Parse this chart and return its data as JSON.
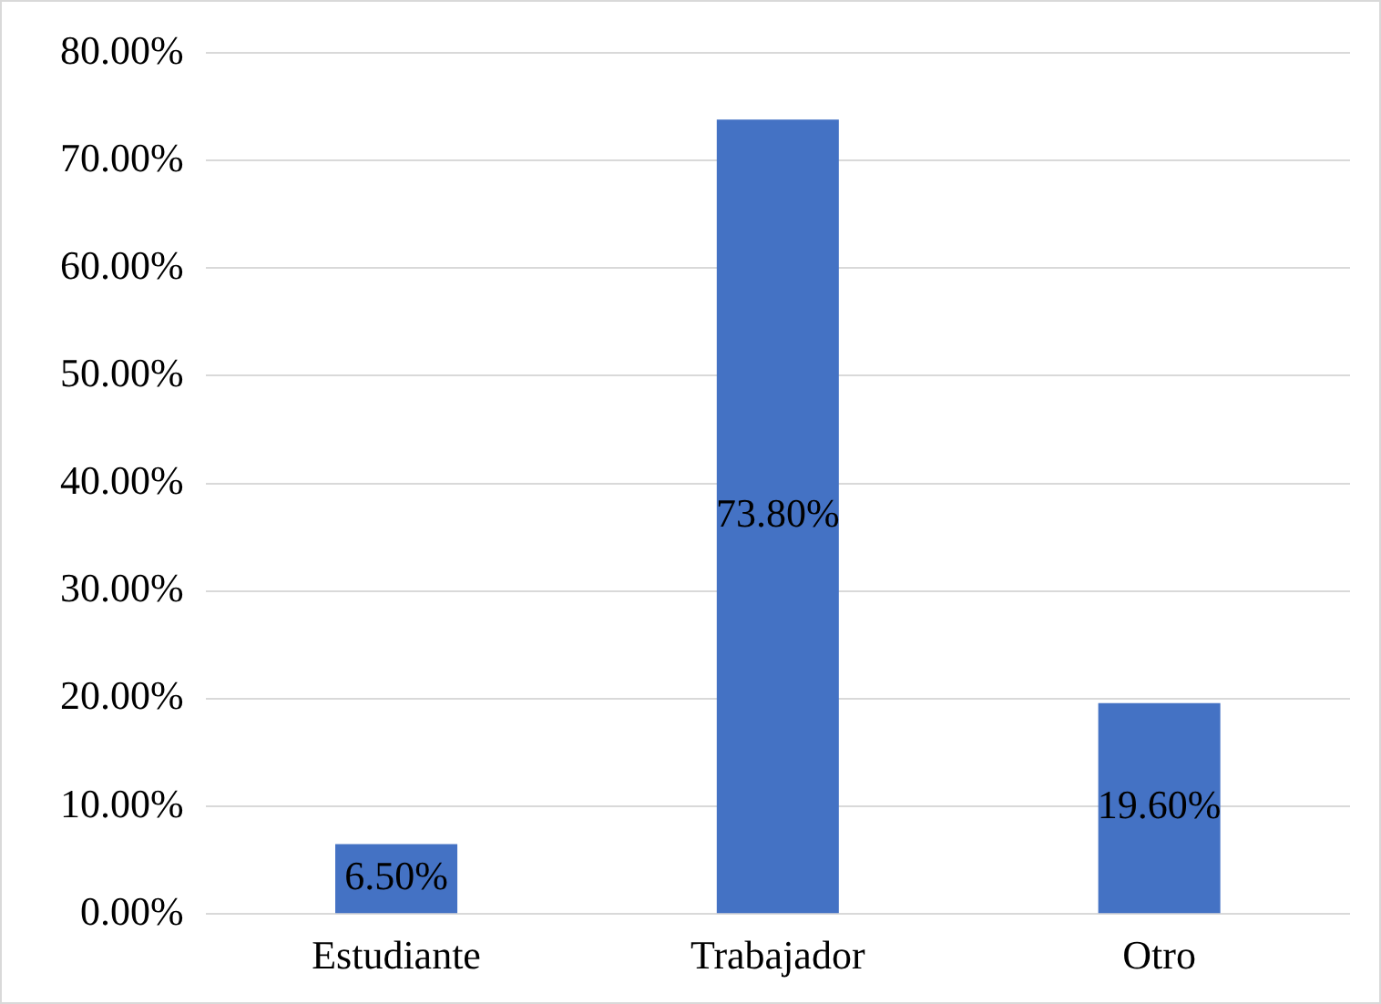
{
  "chart_data": {
    "type": "bar",
    "categories": [
      "Estudiante",
      "Trabajador",
      "Otro"
    ],
    "values": [
      6.5,
      73.8,
      19.6
    ],
    "color": "#4472c4",
    "value_labels": [
      "6.50%",
      "73.80%",
      "19.60%"
    ],
    "ylim": [
      0,
      80
    ],
    "yticks": [
      {
        "value": 0,
        "label": "0.00%"
      },
      {
        "value": 10,
        "label": "10.00%"
      },
      {
        "value": 20,
        "label": "20.00%"
      },
      {
        "value": 30,
        "label": "30.00%"
      },
      {
        "value": 40,
        "label": "40.00%"
      },
      {
        "value": 50,
        "label": "50.00%"
      },
      {
        "value": 60,
        "label": "60.00%"
      },
      {
        "value": 70,
        "label": "70.00%"
      },
      {
        "value": 80,
        "label": "80.00%"
      }
    ],
    "grid": "y",
    "legend": false
  }
}
